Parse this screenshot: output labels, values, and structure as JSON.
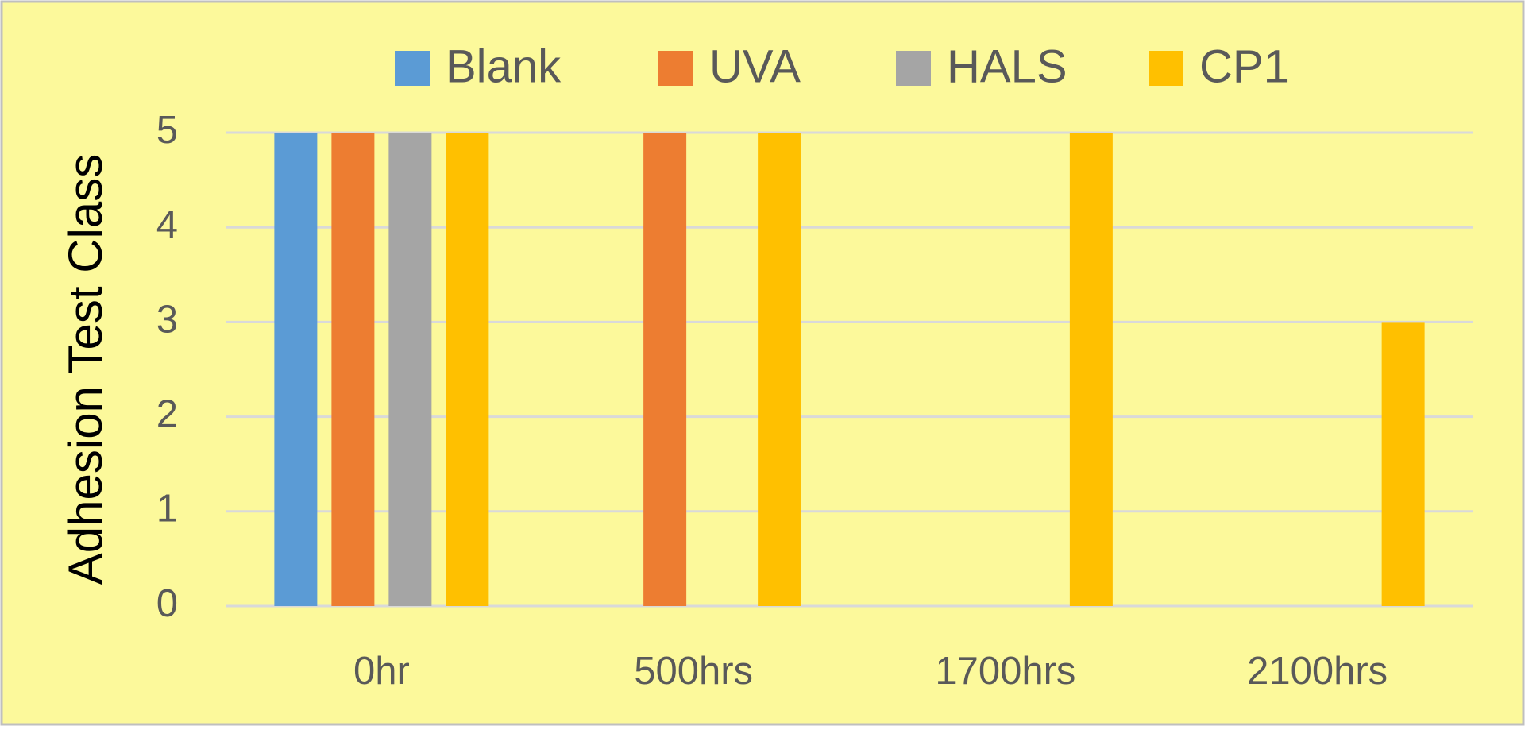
{
  "chart_data": {
    "type": "bar",
    "y_label": "Adhesion Test Class",
    "categories": [
      "0hr",
      "500hrs",
      "1700hrs",
      "2100hrs"
    ],
    "series": [
      {
        "name": "Blank",
        "color": "#5b9bd5",
        "values": [
          5,
          0,
          0,
          0
        ]
      },
      {
        "name": "UVA",
        "color": "#ed7d31",
        "values": [
          5,
          5,
          0,
          0
        ]
      },
      {
        "name": "HALS",
        "color": "#a5a5a5",
        "values": [
          5,
          0,
          0,
          0
        ]
      },
      {
        "name": "CP1",
        "color": "#ffc000",
        "values": [
          5,
          5,
          5,
          3
        ]
      }
    ],
    "ylim": [
      0,
      5
    ],
    "yticks": [
      0,
      1,
      2,
      3,
      4,
      5
    ],
    "grid": true,
    "legend": "top"
  }
}
